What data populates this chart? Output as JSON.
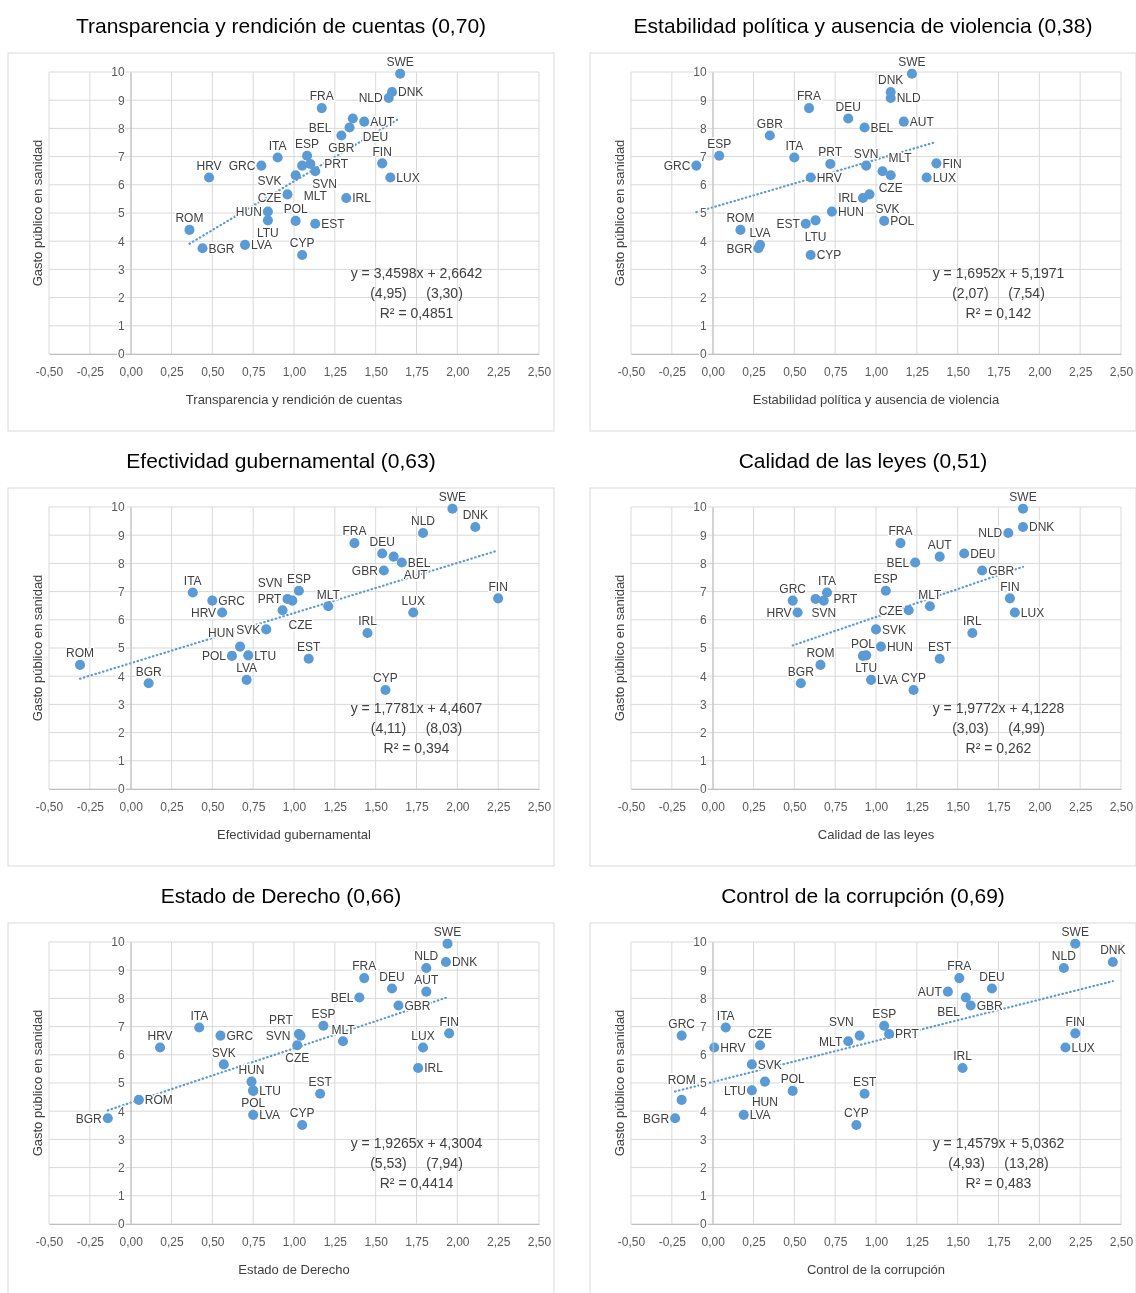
{
  "chart_data": [
    {
      "type": "scatter",
      "title": "Transparencia y rendición de cuentas (0,70)",
      "xlabel": "Transparencia y rendición de cuentas",
      "ylabel": "Gasto público en sanidad",
      "xlim": [
        -0.5,
        2.5
      ],
      "ylim": [
        0,
        10
      ],
      "xticks": [
        {
          "value": -0.5,
          "label": "-0,50"
        },
        {
          "value": -0.25,
          "label": "-0,25"
        },
        {
          "value": 0,
          "label": "0,00"
        },
        {
          "value": 0.25,
          "label": "0,25"
        },
        {
          "value": 0.5,
          "label": "0,50"
        },
        {
          "value": 0.75,
          "label": "0,75"
        },
        {
          "value": 1,
          "label": "1,00"
        },
        {
          "value": 1.25,
          "label": "1,25"
        },
        {
          "value": 1.5,
          "label": "1,50"
        },
        {
          "value": 1.75,
          "label": "1,75"
        },
        {
          "value": 2,
          "label": "2,00"
        },
        {
          "value": 2.25,
          "label": "2,25"
        },
        {
          "value": 2.5,
          "label": "2,50"
        }
      ],
      "yticks": [
        0,
        1,
        2,
        3,
        4,
        5,
        6,
        7,
        8,
        9,
        10
      ],
      "grid": true,
      "marker": "circle",
      "annotations": [
        "y = 3,4598x + 2,6642",
        "(4,95)     (3,30)",
        "R² = 0,4851"
      ],
      "series": [
        {
          "type": "scatter",
          "color": "#5b9bd5",
          "value_labels": [
            "SWE",
            "DNK",
            "NLD",
            "FRA",
            "DEU",
            "AUT",
            "BEL",
            "GBR",
            "ESP",
            "ITA",
            "GRC",
            "SVN",
            "PRT",
            "FIN",
            "MLT",
            "CZE",
            "HRV",
            "LUX",
            "SVK",
            "IRL",
            "HUN",
            "LTU",
            "POL",
            "EST",
            "ROM",
            "LVA",
            "BGR",
            "CYP"
          ],
          "x": [
            1.65,
            1.6,
            1.58,
            1.17,
            1.36,
            1.43,
            1.34,
            1.29,
            1.08,
            0.9,
            0.8,
            1.05,
            1.1,
            1.54,
            1.13,
            1.01,
            0.48,
            1.59,
            0.96,
            1.32,
            0.84,
            0.84,
            1.01,
            1.13,
            0.36,
            0.7,
            0.44,
            1.05
          ],
          "values": [
            9.94,
            9.29,
            9.08,
            8.72,
            8.35,
            8.24,
            8.03,
            7.75,
            7.03,
            6.97,
            6.68,
            6.68,
            6.74,
            6.76,
            6.48,
            6.34,
            6.26,
            6.26,
            5.66,
            5.53,
            5.05,
            4.74,
            4.72,
            4.62,
            4.4,
            3.87,
            3.75,
            3.51
          ]
        },
        {
          "type": "line",
          "color": "#5b9bd5",
          "line_style": "dotted",
          "marker": "none",
          "x": [
            0.36,
            1.65
          ],
          "values": [
            3.91,
            8.37
          ]
        }
      ]
    },
    {
      "type": "scatter",
      "title": "Estabilidad política y ausencia de violencia (0,38)",
      "xlabel": "Estabilidad política y ausencia de violencia",
      "ylabel": "Gasto público en sanidad",
      "xlim": [
        -0.5,
        2.5
      ],
      "ylim": [
        0,
        10
      ],
      "xticks": [
        {
          "value": -0.5,
          "label": "-0,50"
        },
        {
          "value": -0.25,
          "label": "-0,25"
        },
        {
          "value": 0,
          "label": "0,00"
        },
        {
          "value": 0.25,
          "label": "0,25"
        },
        {
          "value": 0.5,
          "label": "0,50"
        },
        {
          "value": 0.75,
          "label": "0,75"
        },
        {
          "value": 1,
          "label": "1,00"
        },
        {
          "value": 1.25,
          "label": "1,25"
        },
        {
          "value": 1.5,
          "label": "1,50"
        },
        {
          "value": 1.75,
          "label": "1,75"
        },
        {
          "value": 2,
          "label": "2,00"
        },
        {
          "value": 2.25,
          "label": "2,25"
        },
        {
          "value": 2.5,
          "label": "2,50"
        }
      ],
      "yticks": [
        0,
        1,
        2,
        3,
        4,
        5,
        6,
        7,
        8,
        9,
        10
      ],
      "grid": true,
      "marker": "circle",
      "annotations": [
        "y = 1,6952x + 5,1971",
        "(2,07)     (7,54)",
        "R² = 0,142"
      ],
      "series": [
        {
          "type": "scatter",
          "color": "#5b9bd5",
          "value_labels": [
            "SWE",
            "DNK",
            "NLD",
            "FRA",
            "DEU",
            "AUT",
            "BEL",
            "GBR",
            "ESP",
            "ITA",
            "GRC",
            "SVN",
            "PRT",
            "FIN",
            "MLT",
            "CZE",
            "HRV",
            "LUX",
            "SVK",
            "IRL",
            "HUN",
            "LTU",
            "POL",
            "EST",
            "ROM",
            "LVA",
            "BGR",
            "CYP"
          ],
          "x": [
            1.22,
            1.09,
            1.09,
            0.59,
            0.83,
            1.17,
            0.93,
            0.35,
            0.04,
            0.5,
            -0.1,
            0.94,
            0.72,
            1.37,
            1.04,
            1.09,
            0.6,
            1.31,
            0.96,
            0.92,
            0.73,
            0.63,
            1.05,
            0.57,
            0.17,
            0.29,
            0.28,
            0.6
          ],
          "values": [
            9.94,
            9.29,
            9.08,
            8.72,
            8.35,
            8.24,
            8.03,
            7.75,
            7.03,
            6.97,
            6.68,
            6.68,
            6.74,
            6.76,
            6.48,
            6.34,
            6.26,
            6.26,
            5.66,
            5.53,
            5.05,
            4.74,
            4.72,
            4.62,
            4.4,
            3.87,
            3.75,
            3.51
          ]
        },
        {
          "type": "line",
          "color": "#5b9bd5",
          "line_style": "dotted",
          "marker": "none",
          "x": [
            -0.1,
            1.37
          ],
          "values": [
            5.03,
            7.52
          ]
        }
      ]
    },
    {
      "type": "scatter",
      "title": "Efectividad gubernamental (0,63)",
      "xlabel": "Efectividad gubernamental",
      "ylabel": "Gasto público en sanidad",
      "xlim": [
        -0.5,
        2.5
      ],
      "ylim": [
        0,
        10
      ],
      "xticks": [
        {
          "value": -0.5,
          "label": "-0,50"
        },
        {
          "value": -0.25,
          "label": "-0,25"
        },
        {
          "value": 0,
          "label": "0,00"
        },
        {
          "value": 0.25,
          "label": "0,25"
        },
        {
          "value": 0.5,
          "label": "0,50"
        },
        {
          "value": 0.75,
          "label": "0,75"
        },
        {
          "value": 1,
          "label": "1,00"
        },
        {
          "value": 1.25,
          "label": "1,25"
        },
        {
          "value": 1.5,
          "label": "1,50"
        },
        {
          "value": 1.75,
          "label": "1,75"
        },
        {
          "value": 2,
          "label": "2,00"
        },
        {
          "value": 2.25,
          "label": "2,25"
        },
        {
          "value": 2.5,
          "label": "2,50"
        }
      ],
      "yticks": [
        0,
        1,
        2,
        3,
        4,
        5,
        6,
        7,
        8,
        9,
        10
      ],
      "grid": true,
      "marker": "circle",
      "annotations": [
        "y = 1,7781x + 4,4607",
        "(4,11)     (8,03)",
        "R² = 0,394"
      ],
      "series": [
        {
          "type": "scatter",
          "color": "#5b9bd5",
          "value_labels": [
            "SWE",
            "DNK",
            "NLD",
            "FRA",
            "DEU",
            "AUT",
            "BEL",
            "GBR",
            "ESP",
            "ITA",
            "GRC",
            "SVN",
            "PRT",
            "FIN",
            "MLT",
            "CZE",
            "HRV",
            "LUX",
            "SVK",
            "IRL",
            "HUN",
            "LTU",
            "POL",
            "EST",
            "ROM",
            "LVA",
            "BGR",
            "CYP"
          ],
          "x": [
            1.97,
            2.11,
            1.79,
            1.37,
            1.54,
            1.61,
            1.66,
            1.55,
            1.03,
            0.38,
            0.5,
            0.99,
            0.96,
            2.25,
            1.21,
            0.93,
            0.56,
            1.73,
            0.83,
            1.45,
            0.67,
            0.72,
            0.62,
            1.09,
            -0.31,
            0.71,
            0.11,
            1.56
          ],
          "values": [
            9.94,
            9.29,
            9.08,
            8.72,
            8.35,
            8.24,
            8.03,
            7.75,
            7.03,
            6.97,
            6.68,
            6.68,
            6.74,
            6.76,
            6.48,
            6.34,
            6.26,
            6.26,
            5.66,
            5.53,
            5.05,
            4.74,
            4.72,
            4.62,
            4.4,
            3.87,
            3.75,
            3.51
          ]
        },
        {
          "type": "line",
          "color": "#5b9bd5",
          "line_style": "dotted",
          "marker": "none",
          "x": [
            -0.31,
            2.25
          ],
          "values": [
            3.91,
            8.46
          ]
        }
      ]
    },
    {
      "type": "scatter",
      "title": "Calidad de las leyes (0,51)",
      "xlabel": "Calidad de las leyes",
      "ylabel": "Gasto público en sanidad",
      "xlim": [
        -0.5,
        2.5
      ],
      "ylim": [
        0,
        10
      ],
      "xticks": [
        {
          "value": -0.5,
          "label": "-0,50"
        },
        {
          "value": -0.25,
          "label": "-0,25"
        },
        {
          "value": 0,
          "label": "0,00"
        },
        {
          "value": 0.25,
          "label": "0,25"
        },
        {
          "value": 0.5,
          "label": "0,50"
        },
        {
          "value": 0.75,
          "label": "0,75"
        },
        {
          "value": 1,
          "label": "1,00"
        },
        {
          "value": 1.25,
          "label": "1,25"
        },
        {
          "value": 1.5,
          "label": "1,50"
        },
        {
          "value": 1.75,
          "label": "1,75"
        },
        {
          "value": 2,
          "label": "2,00"
        },
        {
          "value": 2.25,
          "label": "2,25"
        },
        {
          "value": 2.5,
          "label": "2,50"
        }
      ],
      "yticks": [
        0,
        1,
        2,
        3,
        4,
        5,
        6,
        7,
        8,
        9,
        10
      ],
      "grid": true,
      "marker": "circle",
      "annotations": [
        "y = 1,9772x + 4,1228",
        "(3,03)     (4,99)",
        "R² = 0,262"
      ],
      "series": [
        {
          "type": "scatter",
          "color": "#5b9bd5",
          "value_labels": [
            "SWE",
            "DNK",
            "NLD",
            "FRA",
            "DEU",
            "AUT",
            "BEL",
            "GBR",
            "ESP",
            "ITA",
            "GRC",
            "SVN",
            "PRT",
            "FIN",
            "MLT",
            "CZE",
            "HRV",
            "LUX",
            "SVK",
            "IRL",
            "HUN",
            "LTU",
            "POL",
            "EST",
            "ROM",
            "LVA",
            "BGR",
            "CYP"
          ],
          "x": [
            1.9,
            1.9,
            1.81,
            1.15,
            1.54,
            1.39,
            1.24,
            1.65,
            1.06,
            0.7,
            0.49,
            0.68,
            0.63,
            1.82,
            1.33,
            1.2,
            0.52,
            1.85,
            1.0,
            1.59,
            1.03,
            0.94,
            0.92,
            1.39,
            0.66,
            0.97,
            0.54,
            1.23
          ],
          "values": [
            9.94,
            9.29,
            9.08,
            8.72,
            8.35,
            8.24,
            8.03,
            7.75,
            7.03,
            6.97,
            6.68,
            6.68,
            6.74,
            6.76,
            6.48,
            6.34,
            6.26,
            6.26,
            5.66,
            5.53,
            5.05,
            4.74,
            4.72,
            4.62,
            4.4,
            3.87,
            3.75,
            3.51
          ]
        },
        {
          "type": "line",
          "color": "#5b9bd5",
          "line_style": "dotted",
          "marker": "none",
          "x": [
            0.49,
            1.9
          ],
          "values": [
            5.09,
            7.88
          ]
        }
      ]
    },
    {
      "type": "scatter",
      "title": "Estado de Derecho (0,66)",
      "xlabel": "Estado de Derecho",
      "ylabel": "Gasto público en sanidad",
      "xlim": [
        -0.5,
        2.5
      ],
      "ylim": [
        0,
        10
      ],
      "xticks": [
        {
          "value": -0.5,
          "label": "-0,50"
        },
        {
          "value": -0.25,
          "label": "-0,25"
        },
        {
          "value": 0,
          "label": "0,00"
        },
        {
          "value": 0.25,
          "label": "0,25"
        },
        {
          "value": 0.5,
          "label": "0,50"
        },
        {
          "value": 0.75,
          "label": "0,75"
        },
        {
          "value": 1,
          "label": "1,00"
        },
        {
          "value": 1.25,
          "label": "1,25"
        },
        {
          "value": 1.5,
          "label": "1,50"
        },
        {
          "value": 1.75,
          "label": "1,75"
        },
        {
          "value": 2,
          "label": "2,00"
        },
        {
          "value": 2.25,
          "label": "2,25"
        },
        {
          "value": 2.5,
          "label": "2,50"
        }
      ],
      "yticks": [
        0,
        1,
        2,
        3,
        4,
        5,
        6,
        7,
        8,
        9,
        10
      ],
      "grid": true,
      "marker": "circle",
      "annotations": [
        "y = 1,9265x + 4,3004",
        "(5,53)     (7,94)",
        "R² = 0,4414"
      ],
      "series": [
        {
          "type": "scatter",
          "color": "#5b9bd5",
          "value_labels": [
            "SWE",
            "DNK",
            "NLD",
            "FRA",
            "DEU",
            "AUT",
            "BEL",
            "GBR",
            "ESP",
            "ITA",
            "GRC",
            "SVN",
            "PRT",
            "FIN",
            "MLT",
            "CZE",
            "HRV",
            "LUX",
            "SVK",
            "IRL",
            "HUN",
            "LTU",
            "POL",
            "EST",
            "ROM",
            "LVA",
            "BGR",
            "CYP"
          ],
          "x": [
            1.94,
            1.93,
            1.81,
            1.43,
            1.6,
            1.81,
            1.4,
            1.64,
            1.18,
            0.42,
            0.55,
            1.04,
            1.03,
            1.95,
            1.3,
            1.02,
            0.18,
            1.79,
            0.57,
            1.76,
            0.74,
            0.75,
            0.75,
            1.16,
            0.05,
            0.75,
            -0.14,
            1.05
          ],
          "values": [
            9.94,
            9.29,
            9.08,
            8.72,
            8.35,
            8.24,
            8.03,
            7.75,
            7.03,
            6.97,
            6.68,
            6.68,
            6.74,
            6.76,
            6.48,
            6.34,
            6.26,
            6.26,
            5.66,
            5.53,
            5.05,
            4.74,
            4.72,
            4.62,
            4.4,
            3.87,
            3.75,
            3.51
          ]
        },
        {
          "type": "line",
          "color": "#5b9bd5",
          "line_style": "dotted",
          "marker": "none",
          "x": [
            -0.14,
            1.95
          ],
          "values": [
            4.03,
            8.06
          ]
        }
      ]
    },
    {
      "type": "scatter",
      "title": "Control de la corrupción (0,69)",
      "xlabel": "Control de la corrupción",
      "ylabel": "Gasto público en sanidad",
      "xlim": [
        -0.5,
        2.5
      ],
      "ylim": [
        0,
        10
      ],
      "xticks": [
        {
          "value": -0.5,
          "label": "-0,50"
        },
        {
          "value": -0.25,
          "label": "-0,25"
        },
        {
          "value": 0,
          "label": "0,00"
        },
        {
          "value": 0.25,
          "label": "0,25"
        },
        {
          "value": 0.5,
          "label": "0,50"
        },
        {
          "value": 0.75,
          "label": "0,75"
        },
        {
          "value": 1,
          "label": "1,00"
        },
        {
          "value": 1.25,
          "label": "1,25"
        },
        {
          "value": 1.5,
          "label": "1,50"
        },
        {
          "value": 1.75,
          "label": "1,75"
        },
        {
          "value": 2,
          "label": "2,00"
        },
        {
          "value": 2.25,
          "label": "2,25"
        },
        {
          "value": 2.5,
          "label": "2,50"
        }
      ],
      "yticks": [
        0,
        1,
        2,
        3,
        4,
        5,
        6,
        7,
        8,
        9,
        10
      ],
      "grid": true,
      "marker": "circle",
      "annotations": [
        "y = 1,4579x + 5,0362",
        "(4,93)     (13,28)",
        "R² = 0,483"
      ],
      "series": [
        {
          "type": "scatter",
          "color": "#5b9bd5",
          "value_labels": [
            "SWE",
            "DNK",
            "NLD",
            "FRA",
            "DEU",
            "AUT",
            "BEL",
            "GBR",
            "ESP",
            "ITA",
            "GRC",
            "SVN",
            "PRT",
            "FIN",
            "MLT",
            "CZE",
            "HRV",
            "LUX",
            "SVK",
            "IRL",
            "HUN",
            "LTU",
            "POL",
            "EST",
            "ROM",
            "LVA",
            "BGR",
            "CYP"
          ],
          "x": [
            2.22,
            2.45,
            2.15,
            1.51,
            1.71,
            1.44,
            1.55,
            1.58,
            1.05,
            0.08,
            -0.19,
            0.9,
            1.08,
            2.22,
            0.83,
            0.29,
            0.01,
            2.16,
            0.24,
            1.53,
            0.32,
            0.24,
            0.49,
            0.93,
            -0.19,
            0.19,
            -0.23,
            0.88
          ],
          "values": [
            9.94,
            9.29,
            9.08,
            8.72,
            8.35,
            8.24,
            8.03,
            7.75,
            7.03,
            6.97,
            6.68,
            6.68,
            6.74,
            6.76,
            6.48,
            6.34,
            6.26,
            6.26,
            5.66,
            5.53,
            5.05,
            4.74,
            4.72,
            4.62,
            4.4,
            3.87,
            3.75,
            3.51
          ]
        },
        {
          "type": "line",
          "color": "#5b9bd5",
          "line_style": "dotted",
          "marker": "none",
          "x": [
            -0.23,
            2.45
          ],
          "values": [
            4.7,
            8.61
          ]
        }
      ]
    }
  ]
}
